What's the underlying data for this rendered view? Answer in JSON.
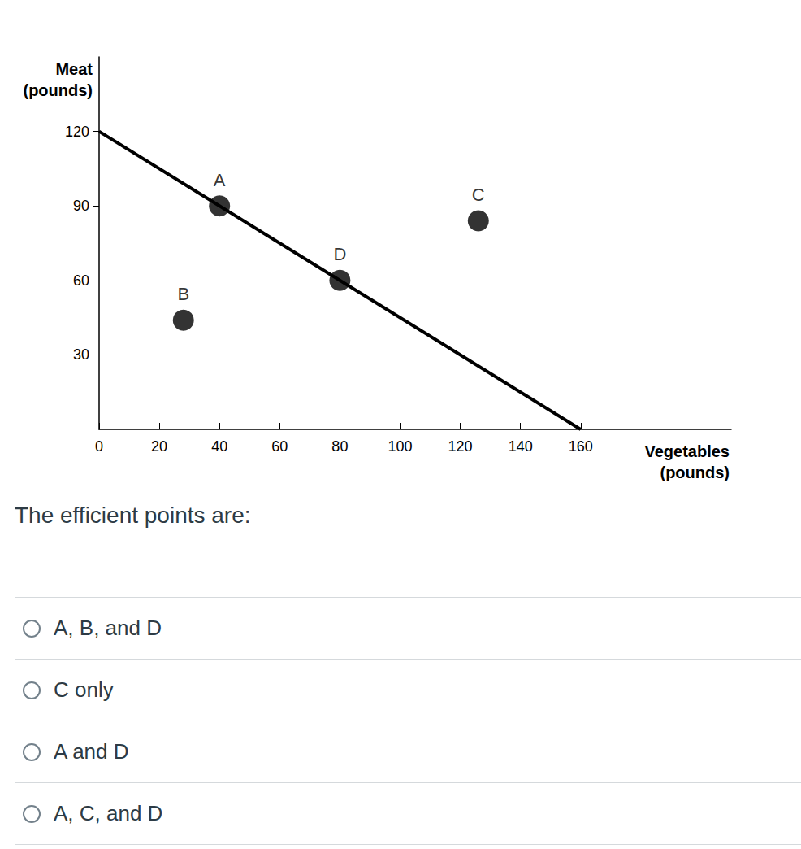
{
  "chart_data": {
    "type": "scatter",
    "x_label": "Vegetables\n(pounds)",
    "y_label": "Meat\n(pounds)",
    "xlim": [
      0,
      210
    ],
    "xticks": [
      0,
      20,
      40,
      60,
      80,
      100,
      120,
      140,
      160
    ],
    "ylim": [
      0,
      150
    ],
    "yticks": [
      30,
      60,
      90,
      120
    ],
    "grid": false,
    "series": [
      {
        "type": "line",
        "color": "#000000",
        "x": [
          0,
          160
        ],
        "y": [
          120,
          0
        ]
      },
      {
        "type": "scatter",
        "color": "#000000",
        "labels": [
          "A",
          "B",
          "C",
          "D"
        ],
        "x": [
          40,
          28,
          126,
          80
        ],
        "y": [
          90,
          44,
          84,
          60
        ]
      }
    ]
  },
  "question": "The efficient points are:",
  "options": [
    "A, B, and D",
    "C only",
    "A and D",
    "A, C, and D"
  ]
}
